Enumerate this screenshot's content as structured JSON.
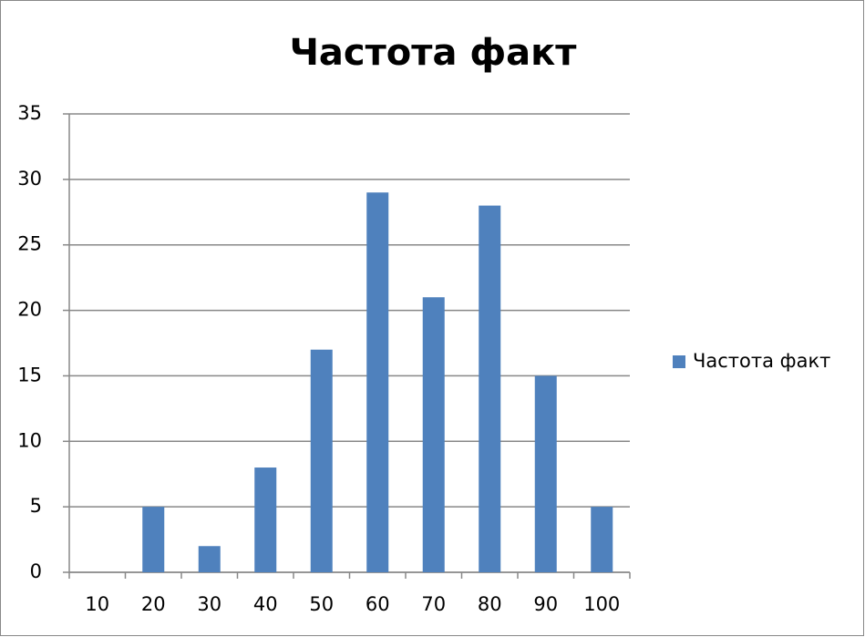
{
  "chart_data": {
    "type": "bar",
    "title": "Частота факт",
    "categories": [
      "10",
      "20",
      "30",
      "40",
      "50",
      "60",
      "70",
      "80",
      "90",
      "100"
    ],
    "series": [
      {
        "name": "Частота факт",
        "color": "#4f81bd",
        "values": [
          0,
          5,
          2,
          8,
          17,
          29,
          21,
          28,
          15,
          5
        ]
      }
    ],
    "ylim": [
      0,
      35
    ],
    "yticks": [
      0,
      5,
      10,
      15,
      20,
      25,
      30,
      35
    ],
    "grid": true,
    "legend": "right"
  }
}
